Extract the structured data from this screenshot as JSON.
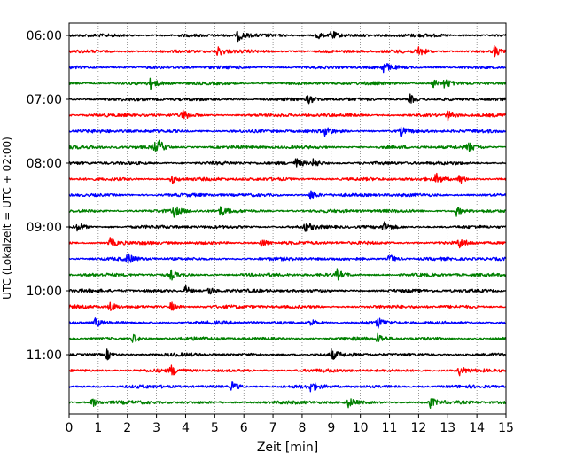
{
  "chart_data": {
    "type": "line",
    "title": "",
    "xlabel": "Zeit  [min]",
    "ylabel": "UTC (Lokalzeit = UTC + 02:00)",
    "xlim": [
      0,
      15
    ],
    "xticks": [
      0,
      1,
      2,
      3,
      4,
      5,
      6,
      7,
      8,
      9,
      10,
      11,
      12,
      13,
      14,
      15
    ],
    "grid": {
      "x": true,
      "y": false,
      "style": "dotted"
    },
    "yticks": [
      {
        "label": "06:00",
        "trace": 0
      },
      {
        "label": "07:00",
        "trace": 4
      },
      {
        "label": "08:00",
        "trace": 8
      },
      {
        "label": "09:00",
        "trace": 12
      },
      {
        "label": "10:00",
        "trace": 16
      },
      {
        "label": "11:00",
        "trace": 20
      }
    ],
    "trace_colors": [
      "#000000",
      "#ff0000",
      "#0000ff",
      "#008000"
    ],
    "trace_count": 24,
    "events": [
      [
        5.8,
        8.5,
        9.0
      ],
      [
        5.1,
        12.0,
        14.6
      ],
      [
        10.8
      ],
      [
        2.8,
        12.5,
        12.9
      ],
      [
        8.2,
        11.7
      ],
      [
        3.9,
        13.0
      ],
      [
        8.8,
        11.4
      ],
      [
        2.9,
        3.1,
        13.7
      ],
      [
        7.8,
        8.4
      ],
      [
        3.5,
        12.6,
        13.4
      ],
      [
        8.3
      ],
      [
        3.6,
        5.2,
        13.3
      ],
      [
        0.3,
        8.1,
        10.8
      ],
      [
        1.4,
        6.6,
        13.4
      ],
      [
        2.0,
        11.0
      ],
      [
        3.5,
        9.2
      ],
      [
        4.0,
        4.8
      ],
      [
        1.4,
        3.5
      ],
      [
        0.9,
        8.3,
        10.6
      ],
      [
        2.2,
        10.6
      ],
      [
        1.3,
        9.0
      ],
      [
        3.5,
        13.4
      ],
      [
        5.6,
        8.3
      ],
      [
        0.8,
        9.6,
        12.4
      ]
    ]
  }
}
